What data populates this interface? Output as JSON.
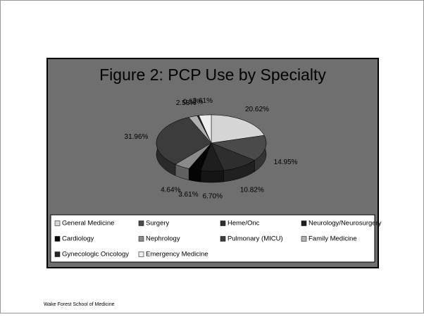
{
  "chart_data": {
    "type": "pie3d",
    "title": "Figure 2: PCP Use by Specialty",
    "categories": [
      "General Medicine",
      "Surgery",
      "Heme/Onc",
      "Neurology/Neurosurgery",
      "Cardiology",
      "Nephrology",
      "Pulmonary (MICU)",
      "Family Medicine",
      "Gynecologic Oncology",
      "Emergency Medicine"
    ],
    "values": [
      20.62,
      14.95,
      10.82,
      6.7,
      3.61,
      4.64,
      31.96,
      2.58,
      0.52,
      3.61
    ],
    "value_labels": [
      "20.62%",
      "14.95%",
      "10.82%",
      "6.70%",
      "3.61%",
      "4.64%",
      "31.96%",
      "2.58%",
      "0.52%",
      "3.61%"
    ],
    "colors": [
      "#d6d6d6",
      "#4a4a4a",
      "#2e2e2e",
      "#1e1e1e",
      "#050505",
      "#8a8a8a",
      "#3c3c3c",
      "#b0b0b0",
      "#262626",
      "#eeeeee"
    ],
    "legend": "bottom"
  },
  "footer": "Wake Forest School of Medicine"
}
